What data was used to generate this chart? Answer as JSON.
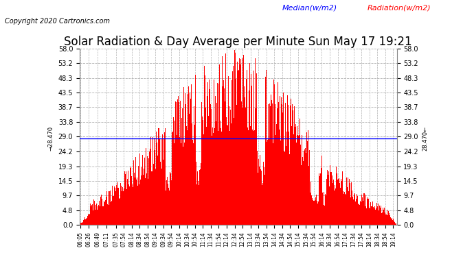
{
  "title": "Solar Radiation & Day Average per Minute Sun May 17 19:21",
  "copyright": "Copyright 2020 Cartronics.com",
  "median_label": "Median(w/m2)",
  "radiation_label": "Radiation(w/m2)",
  "median_value": 28.47,
  "yticks": [
    0.0,
    4.8,
    9.7,
    14.5,
    19.3,
    24.2,
    29.0,
    33.8,
    38.7,
    43.5,
    48.3,
    53.2,
    58.0
  ],
  "ylim": [
    0.0,
    58.0
  ],
  "bar_color": "#FF0000",
  "median_color": "#0000FF",
  "grid_color": "#B0B0B0",
  "background_color": "#FFFFFF",
  "title_color": "#000000",
  "title_fontsize": 12,
  "left_margin_label": "28.470",
  "right_margin_label": "28.470"
}
